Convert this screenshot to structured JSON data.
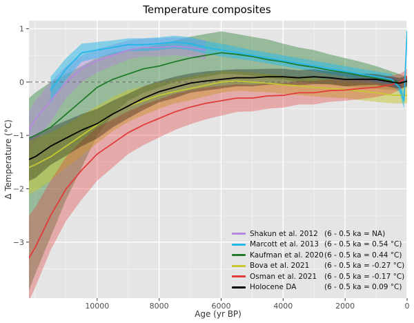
{
  "chart_data": {
    "type": "line",
    "title": "Temperature composites",
    "xlabel": "Age (yr BP)",
    "ylabel": "Δ Temperature (°C)",
    "xlim": [
      12200,
      0
    ],
    "ylim": [
      -4.05,
      1.15
    ],
    "x_axis_reversed": true,
    "grid": true,
    "zero_line_dashed": true,
    "plot_background": "#e5e5e5",
    "grid_color": "#ffffff",
    "tick_label_color": "#4d4d4d",
    "legend_position": "lower right",
    "x_ticks": [
      10000,
      8000,
      6000,
      4000,
      2000,
      0
    ],
    "x_tick_labels": [
      "10000",
      "8000",
      "6000",
      "4000",
      "2000",
      "0"
    ],
    "x_minor_ticks": [
      12000,
      11000,
      9000,
      7000,
      5000,
      3000,
      1000
    ],
    "y_ticks": [
      -3,
      -2,
      -1,
      0,
      1
    ],
    "y_tick_labels": [
      "−3",
      "−2",
      "−1",
      "0",
      "1"
    ],
    "y_minor_ticks": [
      -3.5,
      -2.5,
      -1.5,
      -0.5,
      0.5
    ],
    "ages": [
      12200,
      12000,
      11500,
      11000,
      10500,
      10000,
      9500,
      9000,
      8500,
      8000,
      7500,
      7000,
      6500,
      6000,
      5500,
      5000,
      4500,
      4000,
      3500,
      3000,
      2500,
      2000,
      1500,
      1000,
      500,
      250,
      100,
      0
    ],
    "series": [
      {
        "name": "Shakun et al. 2012",
        "stat": "(6 - 0.5 ka = NA)",
        "color": "#b388dd",
        "band_opacity": 0.45,
        "values": [
          -0.9,
          -0.7,
          -0.35,
          0.0,
          0.25,
          0.4,
          0.5,
          0.6,
          0.65,
          0.65,
          0.67,
          0.65,
          0.6,
          null,
          null,
          null,
          null,
          null,
          null,
          null,
          null,
          null,
          null,
          null,
          null,
          null,
          null,
          null
        ],
        "upper": [
          -0.55,
          -0.35,
          0.0,
          0.3,
          0.5,
          0.62,
          0.7,
          0.78,
          0.82,
          0.82,
          0.84,
          0.82,
          0.78,
          null,
          null,
          null,
          null,
          null,
          null,
          null,
          null,
          null,
          null,
          null,
          null,
          null,
          null,
          null
        ],
        "lower": [
          -1.3,
          -1.1,
          -0.75,
          -0.3,
          0.0,
          0.18,
          0.3,
          0.42,
          0.48,
          0.48,
          0.5,
          0.48,
          0.42,
          null,
          null,
          null,
          null,
          null,
          null,
          null,
          null,
          null,
          null,
          null,
          null,
          null,
          null,
          null
        ]
      },
      {
        "name": "Marcott et al. 2013",
        "stat": "(6 - 0.5 ka = 0.54 °C)",
        "color": "#23b7ea",
        "band_opacity": 0.5,
        "values": [
          null,
          null,
          -0.15,
          0.25,
          0.55,
          0.6,
          0.65,
          0.7,
          0.7,
          0.72,
          0.75,
          0.72,
          0.65,
          0.6,
          0.55,
          0.5,
          0.45,
          0.4,
          0.35,
          0.3,
          0.25,
          0.2,
          0.15,
          0.1,
          0.05,
          -0.1,
          -0.35,
          0.95
        ],
        "upper": [
          null,
          null,
          0.1,
          0.45,
          0.72,
          0.75,
          0.78,
          0.82,
          0.82,
          0.84,
          0.87,
          0.84,
          0.77,
          0.72,
          0.66,
          0.6,
          0.55,
          0.5,
          0.45,
          0.4,
          0.35,
          0.3,
          0.25,
          0.2,
          0.15,
          0.0,
          -0.2,
          1.05
        ],
        "lower": [
          null,
          null,
          -0.4,
          0.05,
          0.38,
          0.45,
          0.52,
          0.58,
          0.58,
          0.6,
          0.63,
          0.6,
          0.53,
          0.48,
          0.44,
          0.4,
          0.35,
          0.3,
          0.25,
          0.2,
          0.15,
          0.1,
          0.05,
          0.0,
          -0.05,
          -0.2,
          -0.5,
          0.85
        ]
      },
      {
        "name": "Kaufman et al. 2020",
        "stat": "(6 - 0.5 ka = 0.44 °C)",
        "color": "#217a2b",
        "band_opacity": 0.4,
        "values": [
          -1.05,
          -1.0,
          -0.85,
          -0.6,
          -0.35,
          -0.1,
          0.05,
          0.15,
          0.25,
          0.3,
          0.38,
          0.45,
          0.5,
          0.55,
          0.52,
          0.48,
          0.42,
          0.38,
          0.32,
          0.28,
          0.22,
          0.18,
          0.12,
          0.08,
          0.02,
          0.0,
          0.0,
          0.0
        ],
        "upper": [
          -0.3,
          -0.2,
          0.0,
          0.15,
          0.3,
          0.45,
          0.55,
          0.6,
          0.65,
          0.7,
          0.78,
          0.85,
          0.9,
          0.95,
          0.9,
          0.85,
          0.8,
          0.72,
          0.65,
          0.6,
          0.52,
          0.45,
          0.38,
          0.3,
          0.2,
          0.15,
          0.12,
          0.1
        ],
        "lower": [
          -3.9,
          -3.6,
          -2.9,
          -2.2,
          -1.6,
          -1.0,
          -0.6,
          -0.35,
          -0.2,
          -0.1,
          0.0,
          0.05,
          0.1,
          0.15,
          0.15,
          0.12,
          0.08,
          0.05,
          0.0,
          -0.02,
          -0.05,
          -0.08,
          -0.1,
          -0.12,
          -0.15,
          -0.15,
          -0.12,
          -0.1
        ]
      },
      {
        "name": "Bova et al. 2021",
        "stat": "(6 - 0.5 ka = -0.27 °C)",
        "color": "#c6c832",
        "band_opacity": 0.5,
        "values": [
          -1.6,
          -1.55,
          -1.4,
          -1.2,
          -1.0,
          -0.8,
          -0.6,
          -0.45,
          -0.35,
          -0.25,
          -0.18,
          -0.12,
          -0.06,
          0.0,
          0.02,
          0.0,
          -0.02,
          -0.05,
          -0.07,
          -0.1,
          -0.12,
          -0.14,
          -0.17,
          -0.2,
          -0.24,
          -0.25,
          -0.25,
          -0.25
        ],
        "upper": [
          -1.1,
          -1.05,
          -0.95,
          -0.8,
          -0.62,
          -0.45,
          -0.28,
          -0.15,
          -0.08,
          0.0,
          0.05,
          0.1,
          0.15,
          0.2,
          0.2,
          0.18,
          0.15,
          0.12,
          0.1,
          0.07,
          0.05,
          0.02,
          0.0,
          -0.03,
          -0.08,
          -0.1,
          -0.1,
          -0.1
        ],
        "lower": [
          -2.1,
          -2.05,
          -1.85,
          -1.6,
          -1.38,
          -1.15,
          -0.92,
          -0.75,
          -0.62,
          -0.5,
          -0.4,
          -0.34,
          -0.27,
          -0.2,
          -0.16,
          -0.18,
          -0.19,
          -0.22,
          -0.24,
          -0.27,
          -0.29,
          -0.3,
          -0.34,
          -0.37,
          -0.4,
          -0.4,
          -0.4,
          -0.4
        ]
      },
      {
        "name": "Osman et al. 2021",
        "stat": "(6 - 0.5 ka = -0.17 °C)",
        "color": "#e23b3b",
        "band_opacity": 0.35,
        "values": [
          -3.3,
          -3.1,
          -2.5,
          -2.0,
          -1.65,
          -1.35,
          -1.15,
          -0.95,
          -0.8,
          -0.68,
          -0.56,
          -0.47,
          -0.4,
          -0.35,
          -0.3,
          -0.3,
          -0.26,
          -0.25,
          -0.2,
          -0.2,
          -0.16,
          -0.15,
          -0.12,
          -0.1,
          -0.05,
          0.0,
          0.05,
          0.1
        ],
        "upper": [
          -2.5,
          -2.35,
          -1.85,
          -1.4,
          -1.1,
          -0.85,
          -0.7,
          -0.55,
          -0.42,
          -0.32,
          -0.22,
          -0.15,
          -0.1,
          -0.07,
          -0.04,
          -0.05,
          -0.02,
          -0.02,
          0.02,
          0.02,
          0.05,
          0.05,
          0.08,
          0.08,
          0.12,
          0.15,
          0.2,
          0.25
        ],
        "lower": [
          -4.1,
          -3.85,
          -3.15,
          -2.6,
          -2.2,
          -1.85,
          -1.6,
          -1.35,
          -1.18,
          -1.04,
          -0.9,
          -0.79,
          -0.7,
          -0.63,
          -0.56,
          -0.55,
          -0.5,
          -0.48,
          -0.42,
          -0.42,
          -0.37,
          -0.35,
          -0.32,
          -0.28,
          -0.22,
          -0.15,
          -0.1,
          -0.05
        ]
      },
      {
        "name": "Holocene DA",
        "stat": "(6 - 0.5 ka = 0.09 °C)",
        "color": "#000000",
        "band_opacity": 0.3,
        "values": [
          -1.45,
          -1.4,
          -1.2,
          -1.05,
          -0.9,
          -0.78,
          -0.6,
          -0.45,
          -0.3,
          -0.18,
          -0.1,
          -0.02,
          0.02,
          0.05,
          0.08,
          0.08,
          0.1,
          0.1,
          0.08,
          0.1,
          0.08,
          0.05,
          0.05,
          0.05,
          0.0,
          -0.02,
          0.0,
          0.02
        ],
        "upper": [
          -1.05,
          -1.0,
          -0.85,
          -0.72,
          -0.6,
          -0.5,
          -0.35,
          -0.22,
          -0.08,
          0.02,
          0.1,
          0.16,
          0.2,
          0.22,
          0.24,
          0.24,
          0.25,
          0.25,
          0.22,
          0.24,
          0.2,
          0.18,
          0.16,
          0.15,
          0.1,
          0.08,
          0.1,
          0.12
        ],
        "lower": [
          -1.85,
          -1.8,
          -1.55,
          -1.38,
          -1.2,
          -1.06,
          -0.85,
          -0.68,
          -0.52,
          -0.38,
          -0.3,
          -0.2,
          -0.16,
          -0.12,
          -0.08,
          -0.08,
          -0.05,
          -0.05,
          -0.06,
          -0.04,
          -0.04,
          -0.08,
          -0.06,
          -0.05,
          -0.1,
          -0.12,
          -0.1,
          -0.08
        ]
      }
    ]
  }
}
